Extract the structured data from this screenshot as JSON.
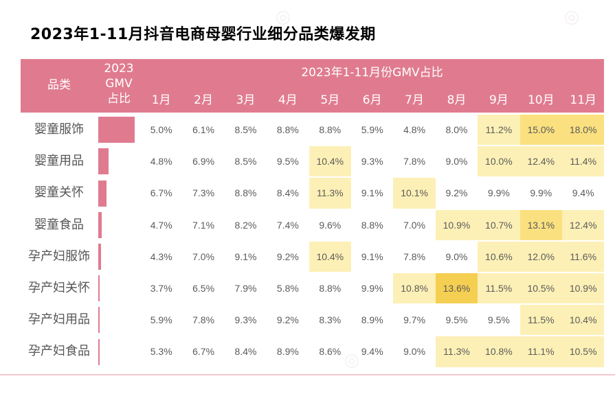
{
  "title": "2023年1-11月抖音电商母婴行业细分品类爆发期",
  "chart_data": {
    "type": "table",
    "title": "2023年1-11月抖音电商母婴行业细分品类爆发期",
    "header": {
      "category_label": "品类",
      "gmv_label_lines": [
        "2023",
        "GMV",
        "占比"
      ],
      "group_label": "2023年1-11月份GMV占比"
    },
    "months": [
      "1月",
      "2月",
      "3月",
      "4月",
      "5月",
      "6月",
      "7月",
      "8月",
      "9月",
      "10月",
      "11月"
    ],
    "rows": [
      {
        "category": "婴童服饰",
        "gmv_share_relative": 1.0,
        "values": [
          "5.0%",
          "6.1%",
          "8.5%",
          "8.8%",
          "8.8%",
          "5.9%",
          "4.8%",
          "8.0%",
          "11.2%",
          "15.0%",
          "18.0%"
        ],
        "levels": [
          0,
          0,
          0,
          0,
          0,
          0,
          0,
          0,
          1,
          2,
          2
        ]
      },
      {
        "category": "婴童用品",
        "gmv_share_relative": 0.28,
        "values": [
          "4.8%",
          "6.9%",
          "8.5%",
          "9.5%",
          "10.4%",
          "9.3%",
          "7.8%",
          "9.0%",
          "10.0%",
          "12.4%",
          "11.4%"
        ],
        "levels": [
          0,
          0,
          0,
          0,
          1,
          0,
          0,
          0,
          1,
          1,
          1
        ]
      },
      {
        "category": "婴童关怀",
        "gmv_share_relative": 0.22,
        "values": [
          "6.7%",
          "7.3%",
          "8.8%",
          "8.4%",
          "11.3%",
          "9.1%",
          "10.1%",
          "9.2%",
          "9.9%",
          "9.9%",
          "9.4%"
        ],
        "levels": [
          0,
          0,
          0,
          0,
          1,
          0,
          1,
          0,
          0,
          0,
          0
        ]
      },
      {
        "category": "婴童食品",
        "gmv_share_relative": 0.1,
        "values": [
          "4.7%",
          "7.1%",
          "8.2%",
          "7.4%",
          "9.6%",
          "8.8%",
          "7.0%",
          "10.9%",
          "10.7%",
          "13.1%",
          "12.4%"
        ],
        "levels": [
          0,
          0,
          0,
          0,
          0,
          0,
          0,
          1,
          1,
          2,
          1
        ]
      },
      {
        "category": "孕产妇服饰",
        "gmv_share_relative": 0.08,
        "values": [
          "4.3%",
          "7.0%",
          "9.1%",
          "9.2%",
          "10.4%",
          "9.1%",
          "7.8%",
          "9.0%",
          "10.6%",
          "12.0%",
          "11.6%"
        ],
        "levels": [
          0,
          0,
          0,
          0,
          1,
          0,
          0,
          0,
          1,
          1,
          1
        ]
      },
      {
        "category": "孕产妇关怀",
        "gmv_share_relative": 0.02,
        "values": [
          "3.7%",
          "6.5%",
          "7.9%",
          "5.8%",
          "8.8%",
          "9.9%",
          "10.8%",
          "13.6%",
          "11.5%",
          "10.5%",
          "10.9%"
        ],
        "levels": [
          0,
          0,
          0,
          0,
          0,
          0,
          1,
          3,
          1,
          1,
          1
        ]
      },
      {
        "category": "孕产妇用品",
        "gmv_share_relative": 0.01,
        "values": [
          "5.9%",
          "7.8%",
          "9.3%",
          "9.2%",
          "8.3%",
          "8.9%",
          "9.7%",
          "9.5%",
          "9.5%",
          "11.5%",
          "10.4%"
        ],
        "levels": [
          0,
          0,
          0,
          0,
          0,
          0,
          0,
          0,
          0,
          1,
          1
        ]
      },
      {
        "category": "孕产妇食品",
        "gmv_share_relative": 0.01,
        "values": [
          "5.3%",
          "6.7%",
          "8.4%",
          "8.9%",
          "8.6%",
          "9.4%",
          "9.0%",
          "11.3%",
          "10.8%",
          "11.1%",
          "10.5%"
        ],
        "levels": [
          0,
          0,
          0,
          0,
          0,
          0,
          0,
          1,
          1,
          1,
          1
        ]
      }
    ],
    "colors": {
      "header": "#e07b8f",
      "bar": "#e07b8f",
      "highlight_levels": [
        "#ffffff",
        "#fdf0b6",
        "#fbe07f",
        "#f5cf52"
      ]
    }
  }
}
